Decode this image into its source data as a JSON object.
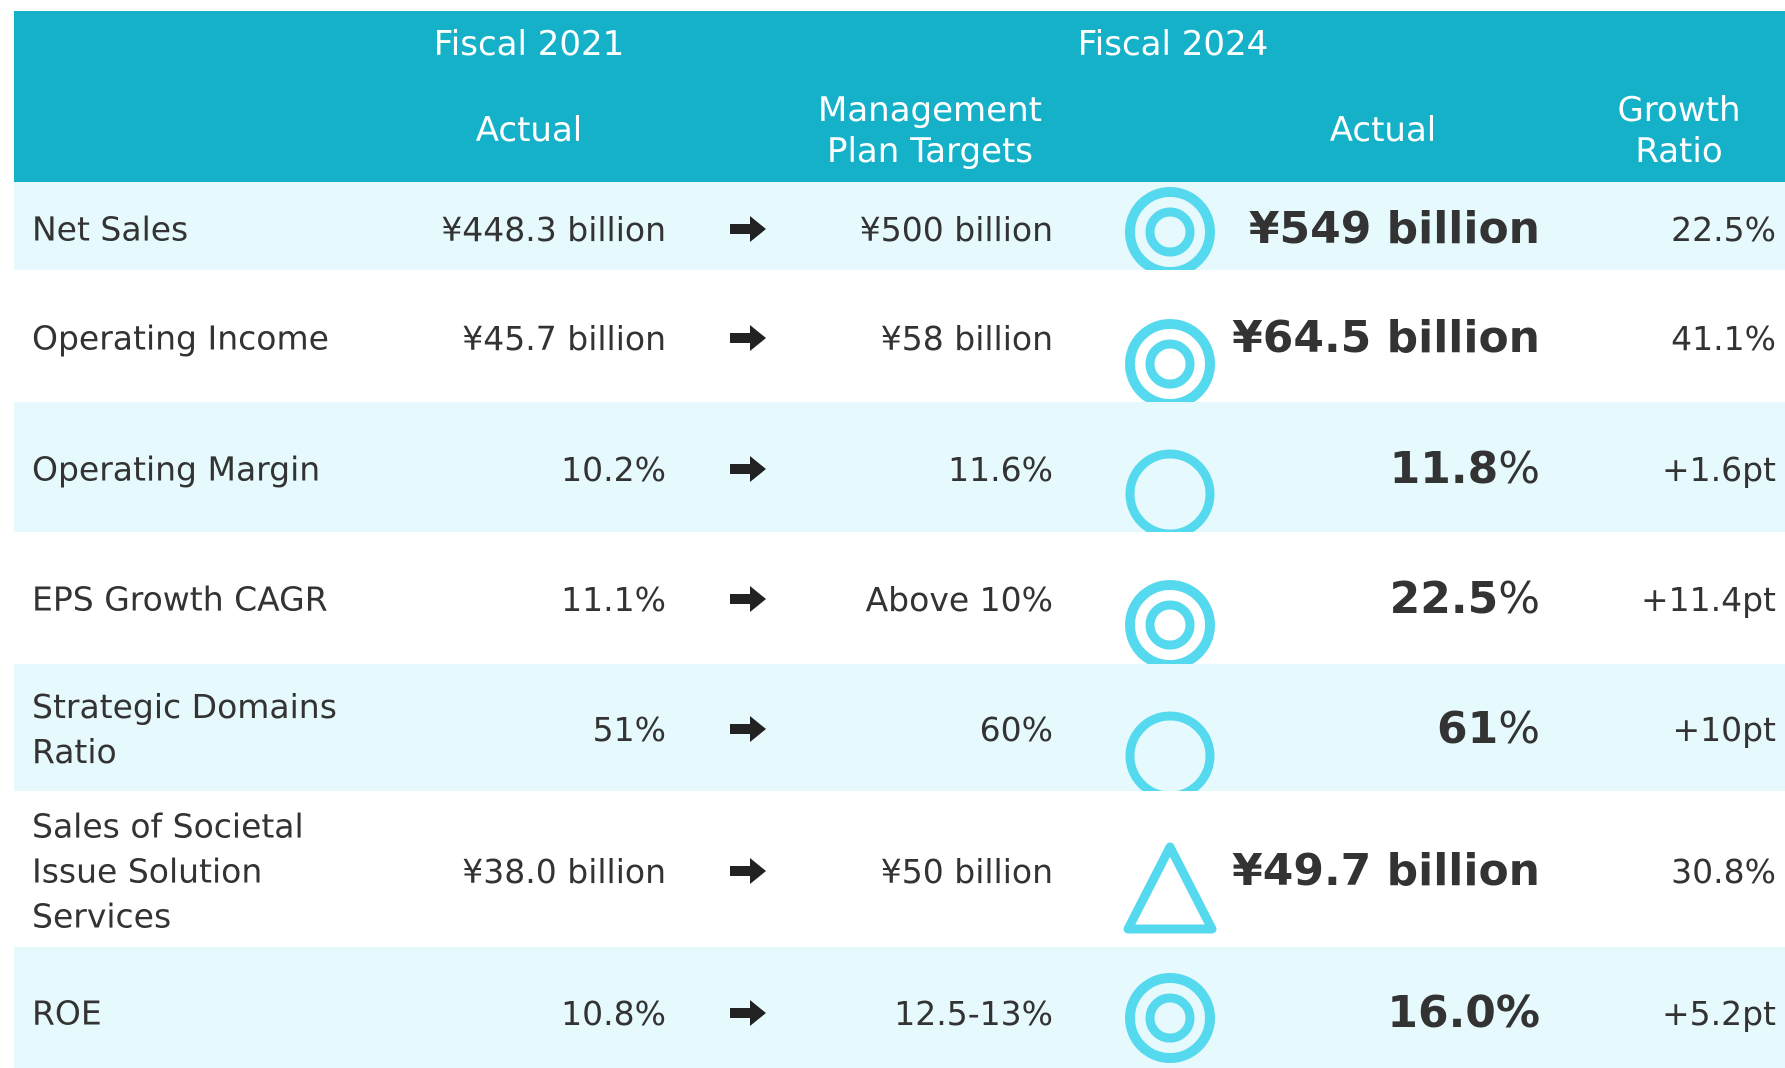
{
  "header": {
    "fy2021": "Fiscal 2021",
    "fy2024": "Fiscal 2024",
    "actual_2021": "Actual",
    "targets": "Management Plan Targets",
    "actual_2024": "Actual",
    "growth": "Growth Ratio"
  },
  "table": {
    "rows": [
      {
        "label": "Net Sales",
        "fy2021": "¥448.3 billion",
        "target": "¥500 billion",
        "actual": "¥549 billion",
        "growth": "22.5%"
      },
      {
        "label": "Operating Income",
        "fy2021": "¥45.7 billion",
        "target": "¥58 billion",
        "actual": "¥64.5 billion",
        "growth": "41.1%"
      },
      {
        "label": "Operating Margin",
        "fy2021": "10.2%",
        "target": "11.6%",
        "actual": "11.8",
        "actual_unit": "%",
        "growth": "+1.6pt"
      },
      {
        "label": "EPS Growth CAGR",
        "fy2021": "11.1%",
        "target": "Above 10%",
        "actual": "22.5",
        "actual_unit": "%",
        "growth": "+11.4pt"
      },
      {
        "label": "Strategic Domains Ratio",
        "fy2021": "51%",
        "target": "60%",
        "actual": "61",
        "actual_unit": "%",
        "growth": "+10pt"
      },
      {
        "label": "Sales of Societal Issue Solution Services",
        "fy2021": "¥38.0 billion",
        "target": "¥50 billion",
        "actual": "¥49.7 billion",
        "growth": "30.8%"
      },
      {
        "label": "ROE",
        "fy2021": "10.8%",
        "target": "12.5-13%",
        "actual": "16.0%",
        "growth": "+5.2pt"
      }
    ]
  }
}
